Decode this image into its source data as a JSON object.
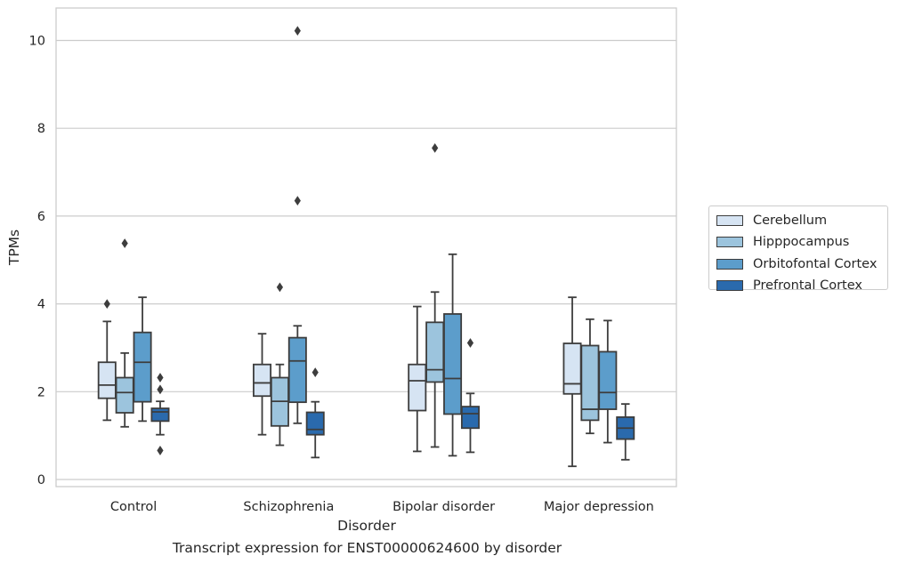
{
  "caption": "Transcript expression for ENST00000624600 by disorder",
  "chart_data": {
    "type": "box",
    "title": "",
    "xlabel": "Disorder",
    "ylabel": "TPMs",
    "ylim": [
      -0.15,
      10.7
    ],
    "yticks": [
      0,
      2,
      4,
      6,
      8,
      10
    ],
    "grid": "horizontal",
    "legend_position": "right",
    "categories": [
      "Control",
      "Schizophrenia",
      "Bipolar disorder",
      "Major depression"
    ],
    "series": [
      {
        "name": "Cerebellum",
        "color": "#d6e4f3",
        "boxes": [
          {
            "whisker_low": 1.35,
            "q1": 1.85,
            "median": 2.15,
            "q3": 2.67,
            "whisker_high": 3.6,
            "outliers": [
              4.0
            ]
          },
          {
            "whisker_low": 1.02,
            "q1": 1.9,
            "median": 2.2,
            "q3": 2.62,
            "whisker_high": 3.32,
            "outliers": []
          },
          {
            "whisker_low": 0.64,
            "q1": 1.57,
            "median": 2.25,
            "q3": 2.62,
            "whisker_high": 3.94,
            "outliers": []
          },
          {
            "whisker_low": 0.3,
            "q1": 1.95,
            "median": 2.18,
            "q3": 3.1,
            "whisker_high": 4.15,
            "outliers": []
          }
        ]
      },
      {
        "name": "Hipppocampus",
        "color": "#9cc4dd",
        "boxes": [
          {
            "whisker_low": 1.2,
            "q1": 1.52,
            "median": 1.98,
            "q3": 2.32,
            "whisker_high": 2.88,
            "outliers": [
              5.38
            ]
          },
          {
            "whisker_low": 0.78,
            "q1": 1.22,
            "median": 1.78,
            "q3": 2.32,
            "whisker_high": 2.62,
            "outliers": [
              4.38
            ]
          },
          {
            "whisker_low": 0.74,
            "q1": 2.22,
            "median": 2.5,
            "q3": 3.58,
            "whisker_high": 4.27,
            "outliers": [
              7.55
            ]
          },
          {
            "whisker_low": 1.05,
            "q1": 1.35,
            "median": 1.6,
            "q3": 3.05,
            "whisker_high": 3.65,
            "outliers": []
          }
        ]
      },
      {
        "name": "Orbitofontal Cortex",
        "color": "#5c9dcb",
        "boxes": [
          {
            "whisker_low": 1.33,
            "q1": 1.77,
            "median": 2.67,
            "q3": 3.35,
            "whisker_high": 4.15,
            "outliers": []
          },
          {
            "whisker_low": 1.28,
            "q1": 1.76,
            "median": 2.7,
            "q3": 3.23,
            "whisker_high": 3.5,
            "outliers": [
              6.35,
              10.22
            ]
          },
          {
            "whisker_low": 0.54,
            "q1": 1.49,
            "median": 2.3,
            "q3": 3.77,
            "whisker_high": 5.13,
            "outliers": []
          },
          {
            "whisker_low": 0.84,
            "q1": 1.6,
            "median": 1.98,
            "q3": 2.91,
            "whisker_high": 3.62,
            "outliers": []
          }
        ]
      },
      {
        "name": "Prefrontal Cortex",
        "color": "#2a6aad",
        "boxes": [
          {
            "whisker_low": 1.02,
            "q1": 1.33,
            "median": 1.54,
            "q3": 1.62,
            "whisker_high": 1.78,
            "outliers": [
              0.66,
              2.05,
              2.32
            ]
          },
          {
            "whisker_low": 0.5,
            "q1": 1.02,
            "median": 1.14,
            "q3": 1.53,
            "whisker_high": 1.77,
            "outliers": [
              2.44
            ]
          },
          {
            "whisker_low": 0.62,
            "q1": 1.17,
            "median": 1.5,
            "q3": 1.66,
            "whisker_high": 1.96,
            "outliers": [
              3.11
            ]
          },
          {
            "whisker_low": 0.45,
            "q1": 0.92,
            "median": 1.17,
            "q3": 1.42,
            "whisker_high": 1.72,
            "outliers": []
          }
        ]
      }
    ]
  }
}
